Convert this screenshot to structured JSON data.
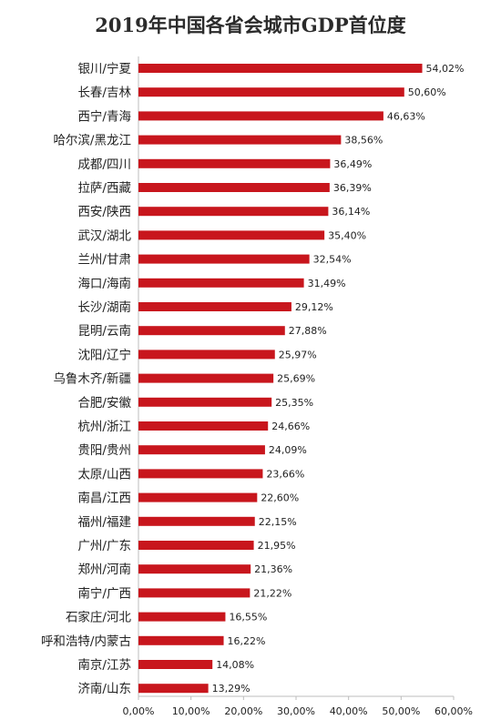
{
  "chart_data": {
    "type": "bar",
    "orientation": "horizontal",
    "title": "2019年中国各省会城市GDP首位度",
    "xlabel": "",
    "ylabel": "",
    "xlim": [
      0,
      60
    ],
    "x_ticks": [
      "0,00%",
      "10,00%",
      "20,00%",
      "30,00%",
      "40,00%",
      "50,00%",
      "60,00%"
    ],
    "grid": false,
    "bar_color": "#c8161d",
    "categories": [
      "银川/宁夏",
      "长春/吉林",
      "西宁/青海",
      "哈尔滨/黑龙江",
      "成都/四川",
      "拉萨/西藏",
      "西安/陕西",
      "武汉/湖北",
      "兰州/甘肃",
      "海口/海南",
      "长沙/湖南",
      "昆明/云南",
      "沈阳/辽宁",
      "乌鲁木齐/新疆",
      "合肥/安徽",
      "杭州/浙江",
      "贵阳/贵州",
      "太原/山西",
      "南昌/江西",
      "福州/福建",
      "广州/广东",
      "郑州/河南",
      "南宁/广西",
      "石家庄/河北",
      "呼和浩特/内蒙古",
      "南京/江苏",
      "济南/山东"
    ],
    "values": [
      54.02,
      50.6,
      46.63,
      38.56,
      36.49,
      36.39,
      36.14,
      35.4,
      32.54,
      31.49,
      29.12,
      27.88,
      25.97,
      25.69,
      25.35,
      24.66,
      24.09,
      23.66,
      22.6,
      22.15,
      21.95,
      21.36,
      21.22,
      16.55,
      16.22,
      14.08,
      13.29
    ],
    "value_labels": [
      "54,02%",
      "50,60%",
      "46,63%",
      "38,56%",
      "36,49%",
      "36,39%",
      "36,14%",
      "35,40%",
      "32,54%",
      "31,49%",
      "29,12%",
      "27,88%",
      "25,97%",
      "25,69%",
      "25,35%",
      "24,66%",
      "24,09%",
      "23,66%",
      "22,60%",
      "22,15%",
      "21,95%",
      "21,36%",
      "21,22%",
      "16,55%",
      "16,22%",
      "14,08%",
      "13,29%"
    ]
  }
}
